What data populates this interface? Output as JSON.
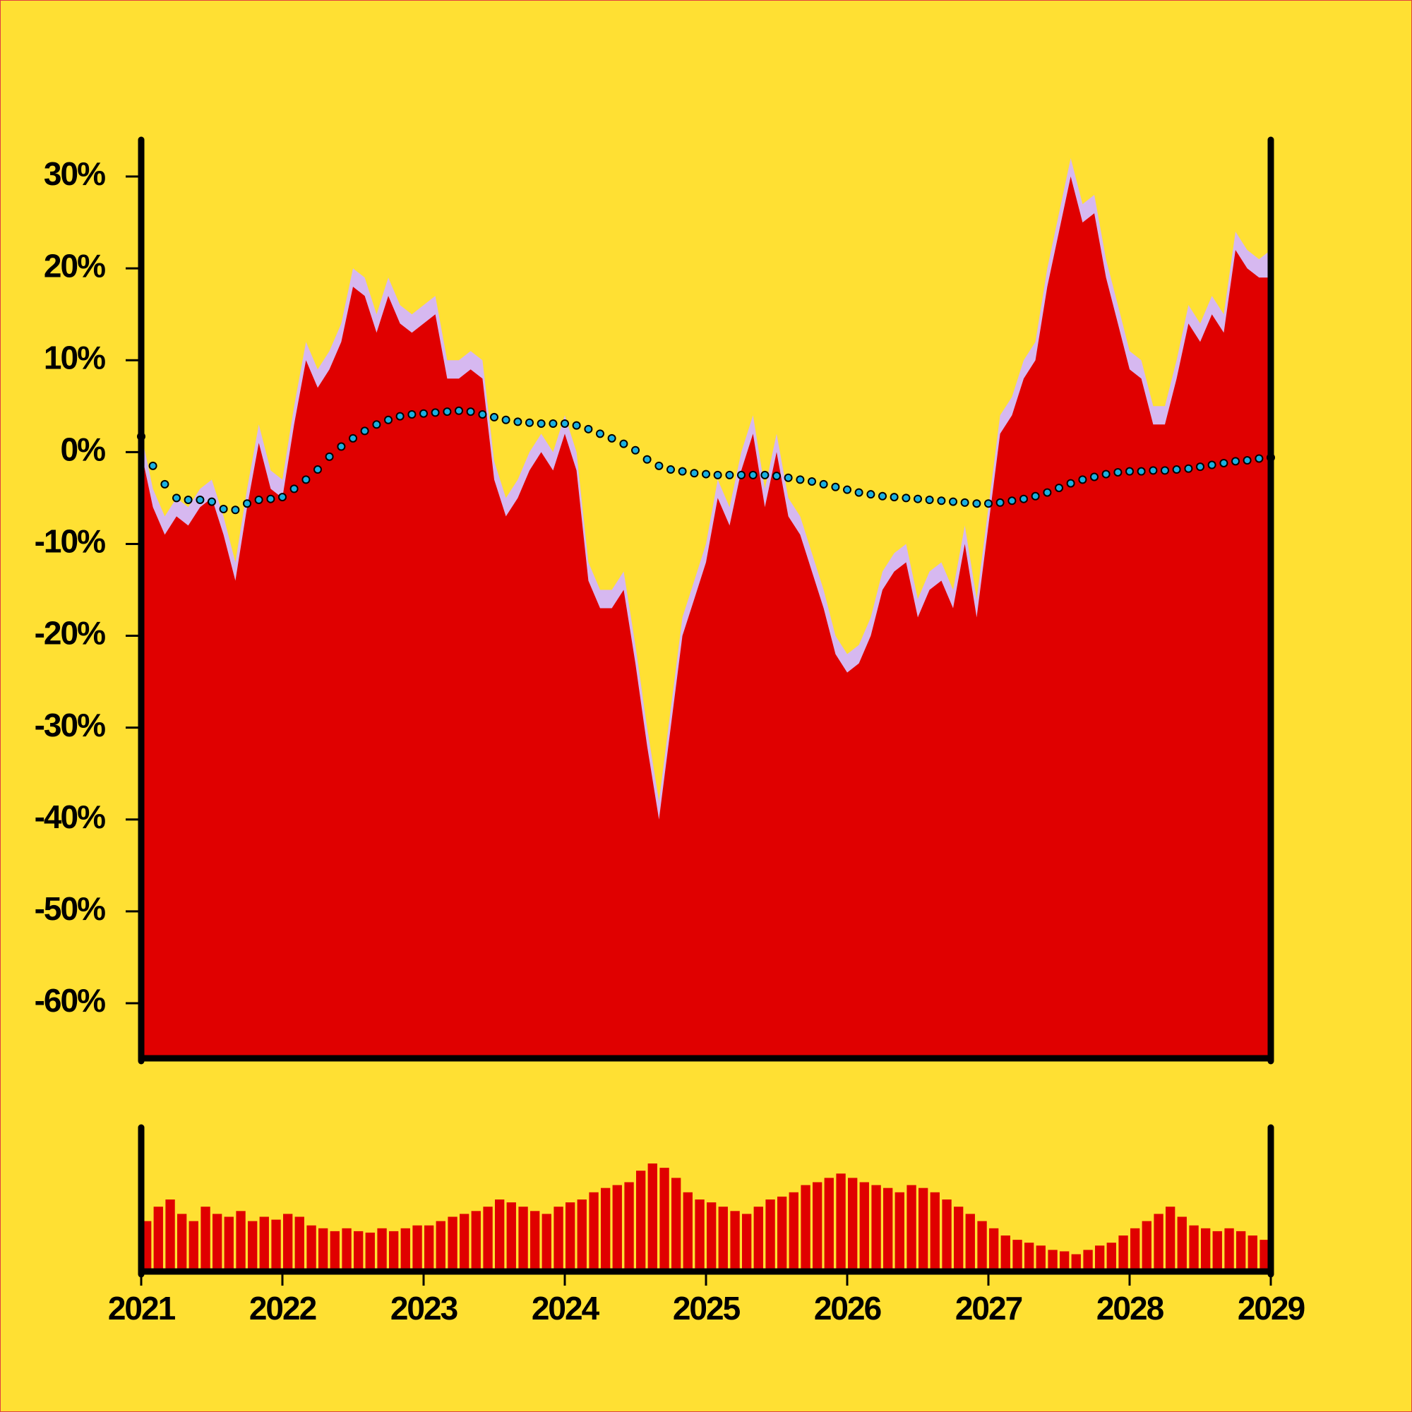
{
  "chart_data": [
    {
      "type": "area",
      "x": [
        2021,
        2021.083,
        2021.167,
        2021.25,
        2021.333,
        2021.417,
        2021.5,
        2021.583,
        2021.667,
        2021.75,
        2021.833,
        2021.917,
        2022,
        2022.083,
        2022.167,
        2022.25,
        2022.333,
        2022.417,
        2022.5,
        2022.583,
        2022.667,
        2022.75,
        2022.833,
        2022.917,
        2023,
        2023.083,
        2023.167,
        2023.25,
        2023.333,
        2023.417,
        2023.5,
        2023.583,
        2023.667,
        2023.75,
        2023.833,
        2023.917,
        2024,
        2024.083,
        2024.167,
        2024.25,
        2024.333,
        2024.417,
        2024.5,
        2024.583,
        2024.667,
        2024.75,
        2024.833,
        2024.917,
        2025,
        2025.083,
        2025.167,
        2025.25,
        2025.333,
        2025.417,
        2025.5,
        2025.583,
        2025.667,
        2025.75,
        2025.833,
        2025.917,
        2026,
        2026.083,
        2026.167,
        2026.25,
        2026.333,
        2026.417,
        2026.5,
        2026.583,
        2026.667,
        2026.75,
        2026.833,
        2026.917,
        2027,
        2027.083,
        2027.167,
        2027.25,
        2027.333,
        2027.417,
        2027.5,
        2027.583,
        2027.667,
        2027.75,
        2027.833,
        2027.917,
        2028,
        2028.083,
        2028.167,
        2028.25,
        2028.333,
        2028.417,
        2028.5,
        2028.583,
        2028.667,
        2028.75,
        2028.833,
        2028.917,
        2029
      ],
      "series": [
        {
          "type": "area",
          "color": "#d6b8f0",
          "values": [
            2,
            -4,
            -7,
            -5,
            -6,
            -4,
            -3,
            -7,
            -12,
            -4,
            3,
            -2,
            -3,
            5,
            12,
            9,
            11,
            14,
            20,
            19,
            15,
            19,
            16,
            15,
            16,
            17,
            10,
            10,
            11,
            10,
            -1,
            -5,
            -3,
            0,
            2,
            0,
            4,
            0,
            -12,
            -15,
            -15,
            -13,
            -21,
            -30,
            -38,
            -28,
            -18,
            -14,
            -10,
            -3,
            -6,
            0,
            4,
            -4,
            2,
            -5,
            -7,
            -11,
            -15,
            -20,
            -22,
            -21,
            -18,
            -13,
            -11,
            -10,
            -16,
            -13,
            -12,
            -15,
            -8,
            -16,
            -6,
            4,
            6,
            10,
            12,
            20,
            26,
            32,
            27,
            28,
            21,
            16,
            11,
            10,
            5,
            5,
            10,
            16,
            14,
            17,
            15,
            24,
            22,
            21,
            22
          ]
        },
        {
          "type": "area",
          "color": "#e00000",
          "values": [
            0,
            -6,
            -9,
            -7,
            -8,
            -6,
            -5,
            -9,
            -14,
            -6,
            1,
            -4,
            -5,
            3,
            10,
            7,
            9,
            12,
            18,
            17,
            13,
            17,
            14,
            13,
            14,
            15,
            8,
            8,
            9,
            8,
            -3,
            -7,
            -5,
            -2,
            0,
            -2,
            2,
            -2,
            -14,
            -17,
            -17,
            -15,
            -23,
            -32,
            -40,
            -30,
            -20,
            -16,
            -12,
            -5,
            -8,
            -2,
            2,
            -6,
            0,
            -7,
            -9,
            -13,
            -17,
            -22,
            -24,
            -23,
            -20,
            -15,
            -13,
            -12,
            -18,
            -15,
            -14,
            -17,
            -10,
            -18,
            -8,
            2,
            4,
            8,
            10,
            18,
            24,
            30,
            25,
            26,
            19,
            14,
            9,
            8,
            3,
            3,
            8,
            14,
            12,
            15,
            13,
            22,
            20,
            19,
            19
          ]
        },
        {
          "type": "dots",
          "color": "#1ab0e0",
          "values": [
            1.7,
            -1.5,
            -3.5,
            -5,
            -5.2,
            -5.2,
            -5.4,
            -6.2,
            -6.3,
            -5.6,
            -5.2,
            -5.1,
            -4.9,
            -4,
            -3,
            -1.9,
            -0.5,
            0.6,
            1.5,
            2.3,
            3,
            3.5,
            3.9,
            4.1,
            4.2,
            4.3,
            4.4,
            4.5,
            4.4,
            4.1,
            3.8,
            3.5,
            3.3,
            3.2,
            3.1,
            3.1,
            3.1,
            2.9,
            2.5,
            2,
            1.5,
            0.9,
            0.2,
            -0.8,
            -1.5,
            -1.9,
            -2.1,
            -2.3,
            -2.4,
            -2.5,
            -2.5,
            -2.5,
            -2.5,
            -2.5,
            -2.6,
            -2.8,
            -3,
            -3.2,
            -3.5,
            -3.8,
            -4.1,
            -4.4,
            -4.6,
            -4.8,
            -4.9,
            -5,
            -5.1,
            -5.2,
            -5.3,
            -5.4,
            -5.5,
            -5.6,
            -5.6,
            -5.5,
            -5.3,
            -5.1,
            -4.8,
            -4.4,
            -3.9,
            -3.4,
            -3,
            -2.7,
            -2.4,
            -2.2,
            -2.1,
            -2.1,
            -2,
            -2,
            -1.9,
            -1.8,
            -1.6,
            -1.4,
            -1.2,
            -1,
            -0.9,
            -0.7,
            -0.6
          ]
        }
      ],
      "xlim": [
        2021,
        2029
      ],
      "ylim": [
        -66,
        34
      ],
      "yticks": [
        {
          "value": -60,
          "label": "-60%"
        },
        {
          "value": -50,
          "label": "-50%"
        },
        {
          "value": -40,
          "label": "-40%"
        },
        {
          "value": -30,
          "label": "-30%"
        },
        {
          "value": -20,
          "label": "-20%"
        },
        {
          "value": -10,
          "label": "-10%"
        },
        {
          "value": 0,
          "label": "0%"
        },
        {
          "value": 10,
          "label": "10%"
        },
        {
          "value": 20,
          "label": "20%"
        },
        {
          "value": 30,
          "label": "30%"
        }
      ]
    },
    {
      "type": "bar",
      "x": [
        2021,
        2021.083,
        2021.167,
        2021.25,
        2021.333,
        2021.417,
        2021.5,
        2021.583,
        2021.667,
        2021.75,
        2021.833,
        2021.917,
        2022,
        2022.083,
        2022.167,
        2022.25,
        2022.333,
        2022.417,
        2022.5,
        2022.583,
        2022.667,
        2022.75,
        2022.833,
        2022.917,
        2023,
        2023.083,
        2023.167,
        2023.25,
        2023.333,
        2023.417,
        2023.5,
        2023.583,
        2023.667,
        2023.75,
        2023.833,
        2023.917,
        2024,
        2024.083,
        2024.167,
        2024.25,
        2024.333,
        2024.417,
        2024.5,
        2024.583,
        2024.667,
        2024.75,
        2024.833,
        2024.917,
        2025,
        2025.083,
        2025.167,
        2025.25,
        2025.333,
        2025.417,
        2025.5,
        2025.583,
        2025.667,
        2025.75,
        2025.833,
        2025.917,
        2026,
        2026.083,
        2026.167,
        2026.25,
        2026.333,
        2026.417,
        2026.5,
        2026.583,
        2026.667,
        2026.75,
        2026.833,
        2026.917,
        2027,
        2027.083,
        2027.167,
        2027.25,
        2027.333,
        2027.417,
        2027.5,
        2027.583,
        2027.667,
        2027.75,
        2027.833,
        2027.917,
        2028,
        2028.083,
        2028.167,
        2028.25,
        2028.333,
        2028.417,
        2028.5,
        2028.583,
        2028.667,
        2028.75,
        2028.833,
        2028.917
      ],
      "values": [
        35,
        45,
        50,
        40,
        35,
        45,
        40,
        38,
        42,
        35,
        38,
        36,
        40,
        38,
        32,
        30,
        28,
        30,
        28,
        27,
        30,
        28,
        30,
        32,
        32,
        35,
        38,
        40,
        42,
        45,
        50,
        48,
        45,
        42,
        40,
        45,
        48,
        50,
        55,
        58,
        60,
        62,
        70,
        75,
        72,
        65,
        55,
        50,
        48,
        45,
        42,
        40,
        45,
        50,
        52,
        55,
        60,
        62,
        65,
        68,
        65,
        62,
        60,
        58,
        55,
        60,
        58,
        55,
        50,
        45,
        40,
        35,
        30,
        25,
        22,
        20,
        18,
        15,
        14,
        12,
        15,
        18,
        20,
        25,
        30,
        35,
        40,
        45,
        38,
        32,
        30,
        28,
        30,
        28,
        25,
        22
      ],
      "color": "#e00000",
      "xlim": [
        2021,
        2029
      ],
      "ylim": [
        0,
        100
      ],
      "xticks": [
        2021,
        2022,
        2023,
        2024,
        2025,
        2026,
        2027,
        2028,
        2029
      ]
    }
  ]
}
